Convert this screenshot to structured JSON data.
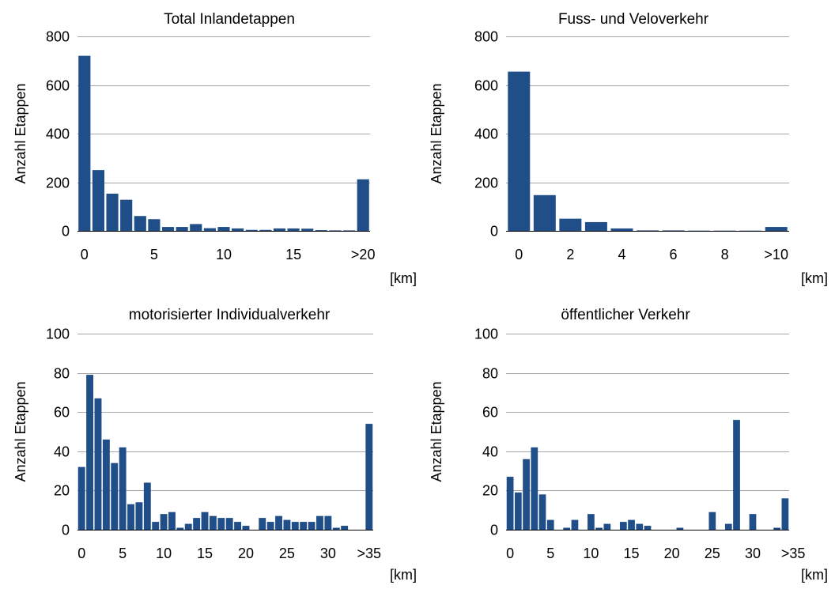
{
  "colors": {
    "bar": "#1f4e88",
    "grid": "#a6a6a6",
    "axis": "#000000"
  },
  "chart_data": [
    {
      "type": "bar",
      "title": "Total Inlandetappen",
      "ylabel": "Anzahl Etappen",
      "xunit": "[km]",
      "ylim": [
        0,
        800
      ],
      "yticks": [
        0,
        200,
        400,
        600,
        800
      ],
      "xtick_labels": [
        "0",
        "5",
        "10",
        "15",
        ">20"
      ],
      "xtick_bins": [
        0,
        5,
        10,
        15,
        20
      ],
      "bin_labels": [
        "0",
        "1",
        "2",
        "3",
        "4",
        "5",
        "6",
        "7",
        "8",
        "9",
        "10",
        "11",
        "12",
        "13",
        "14",
        "15",
        "16",
        "17",
        "18",
        "19",
        ">20"
      ],
      "values": [
        720,
        250,
        153,
        128,
        61,
        48,
        16,
        16,
        28,
        11,
        16,
        10,
        4,
        4,
        10,
        10,
        9,
        3,
        2,
        2,
        212
      ]
    },
    {
      "type": "bar",
      "title": "Fuss- und Veloverkehr",
      "ylabel": "Anzahl Etappen",
      "xunit": "[km]",
      "ylim": [
        0,
        800
      ],
      "yticks": [
        0,
        200,
        400,
        600,
        800
      ],
      "xtick_labels": [
        "0",
        "2",
        "4",
        "6",
        "8",
        ">10"
      ],
      "xtick_bins": [
        0,
        2,
        4,
        6,
        8,
        10
      ],
      "bin_labels": [
        "0",
        "1",
        "2",
        "3",
        "4",
        "5",
        "6",
        "7",
        "8",
        "9",
        ">10"
      ],
      "values": [
        655,
        147,
        50,
        36,
        10,
        2,
        2,
        1,
        1,
        1,
        16
      ]
    },
    {
      "type": "bar",
      "title": "motorisierter Individualverkehr",
      "ylabel": "Anzahl Etappen",
      "xunit": "[km]",
      "ylim": [
        0,
        100
      ],
      "yticks": [
        0,
        20,
        40,
        60,
        80,
        100
      ],
      "xtick_labels": [
        "0",
        "5",
        "10",
        "15",
        "20",
        "25",
        "30",
        ">35"
      ],
      "xtick_bins": [
        0,
        5,
        10,
        15,
        20,
        25,
        30,
        35
      ],
      "values": [
        32,
        79,
        67,
        46,
        34,
        42,
        13,
        14,
        24,
        4,
        8,
        9,
        1,
        3,
        6,
        9,
        7,
        6,
        6,
        4,
        2,
        0,
        6,
        4,
        7,
        5,
        4,
        4,
        4,
        7,
        7,
        1,
        2,
        0,
        0,
        54
      ]
    },
    {
      "type": "bar",
      "title": "öffentlicher Verkehr",
      "ylabel": "Anzahl Etappen",
      "xunit": "[km]",
      "ylim": [
        0,
        100
      ],
      "yticks": [
        0,
        20,
        40,
        60,
        80,
        100
      ],
      "xtick_labels": [
        "0",
        "5",
        "10",
        "15",
        "20",
        "25",
        "30",
        ">35"
      ],
      "xtick_bins": [
        0,
        5,
        10,
        15,
        20,
        25,
        30,
        35
      ],
      "values": [
        27,
        19,
        36,
        42,
        18,
        5,
        0,
        1,
        5,
        0,
        8,
        1,
        3,
        0,
        4,
        5,
        3,
        2,
        0,
        0,
        0,
        1,
        0,
        0,
        0,
        9,
        0,
        3,
        56,
        0,
        8,
        0,
        0,
        1,
        16
      ]
    }
  ]
}
